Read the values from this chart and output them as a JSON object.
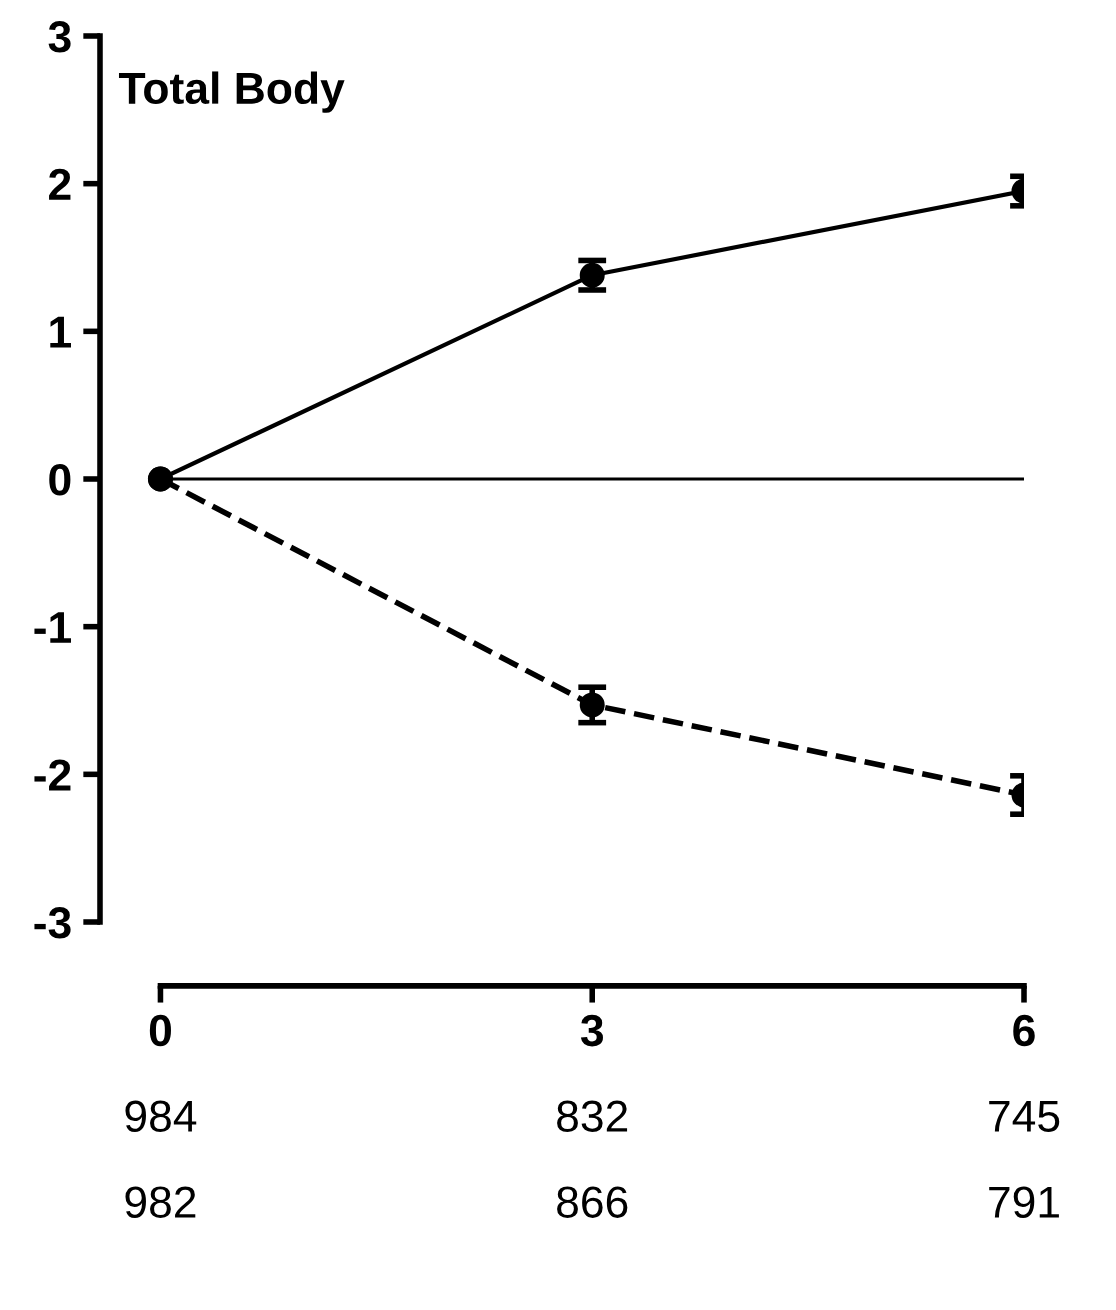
{
  "chart_data": {
    "type": "line",
    "title": "Total Body",
    "x": [
      0,
      3,
      6
    ],
    "series": [
      {
        "color": "#000000",
        "values": [
          0,
          1.38,
          1.95
        ],
        "errors": [
          null,
          0.1,
          0.1
        ],
        "line_style": "solid"
      },
      {
        "color": "#000000",
        "values": [
          0,
          -1.53,
          -2.14
        ],
        "errors": [
          null,
          0.12,
          0.13
        ],
        "line_style": "dashed"
      }
    ],
    "xlim": [
      -0.42,
      6
    ],
    "ylim": [
      -3,
      3
    ],
    "xticks": [
      0,
      3,
      6
    ],
    "yticks": [
      -3,
      -2,
      -1,
      0,
      1,
      2,
      3
    ],
    "ref_lines": [
      {
        "axis": "y",
        "value": 0,
        "color": "#000000"
      }
    ],
    "annotations": [
      "984",
      "832",
      "745",
      "982",
      "866",
      "791"
    ],
    "marker": "circle",
    "grid": false,
    "legend": false
  }
}
